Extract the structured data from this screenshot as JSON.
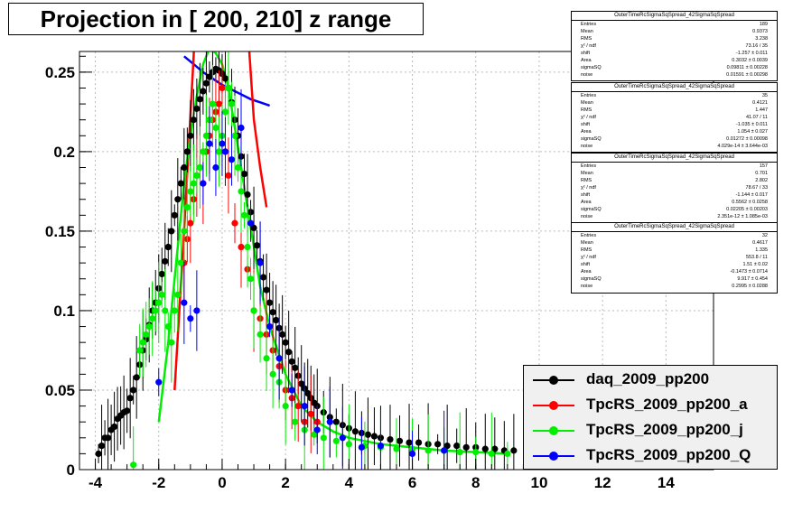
{
  "title": "Projection in [ 200, 210] z range",
  "chart_data": {
    "type": "scatter",
    "xlim": [
      -4.5,
      15.5
    ],
    "ylim": [
      0,
      0.263
    ],
    "xticks": [
      -4,
      -2,
      0,
      2,
      4,
      6,
      8,
      10,
      12,
      14
    ],
    "xtick_labels": [
      "-4",
      "-2",
      "0",
      "2",
      "4",
      "6",
      "8",
      "10",
      "12",
      "14"
    ],
    "yticks": [
      0,
      0.05,
      0.1,
      0.15,
      0.2,
      0.25
    ],
    "ytick_labels": [
      "0",
      "0.05",
      "0.1",
      "0.15",
      "0.2",
      "0.25"
    ],
    "grid": true,
    "legend_position": "bottom-right",
    "series": [
      {
        "name": "daq_2009_pp200",
        "color": "#000000",
        "x": [
          -3.9,
          -3.8,
          -3.7,
          -3.6,
          -3.5,
          -3.4,
          -3.3,
          -3.2,
          -3.1,
          -3.0,
          -2.9,
          -2.8,
          -2.7,
          -2.6,
          -2.5,
          -2.4,
          -2.3,
          -2.2,
          -2.1,
          -2.0,
          -1.9,
          -1.8,
          -1.7,
          -1.6,
          -1.5,
          -1.4,
          -1.3,
          -1.2,
          -1.1,
          -1.0,
          -0.9,
          -0.8,
          -0.7,
          -0.6,
          -0.5,
          -0.4,
          -0.3,
          -0.2,
          -0.1,
          0.0,
          0.1,
          0.2,
          0.3,
          0.4,
          0.5,
          0.6,
          0.7,
          0.8,
          0.9,
          1.0,
          1.1,
          1.2,
          1.3,
          1.4,
          1.5,
          1.6,
          1.7,
          1.8,
          1.9,
          2.0,
          2.1,
          2.2,
          2.3,
          2.4,
          2.5,
          2.6,
          2.7,
          2.8,
          2.9,
          3.0,
          3.2,
          3.4,
          3.6,
          3.8,
          4.0,
          4.2,
          4.4,
          4.6,
          4.8,
          5.0,
          5.3,
          5.6,
          5.9,
          6.2,
          6.5,
          6.8,
          7.1,
          7.4,
          7.7,
          8.0,
          8.3,
          8.6,
          8.9,
          9.2
        ],
        "y": [
          0.01,
          0.015,
          0.02,
          0.02,
          0.025,
          0.027,
          0.032,
          0.034,
          0.036,
          0.037,
          0.045,
          0.05,
          0.058,
          0.066,
          0.075,
          0.082,
          0.091,
          0.1,
          0.105,
          0.114,
          0.123,
          0.131,
          0.14,
          0.15,
          0.16,
          0.17,
          0.18,
          0.19,
          0.2,
          0.21,
          0.22,
          0.227,
          0.233,
          0.238,
          0.243,
          0.247,
          0.25,
          0.252,
          0.251,
          0.249,
          0.246,
          0.24,
          0.231,
          0.22,
          0.21,
          0.197,
          0.186,
          0.173,
          0.162,
          0.152,
          0.141,
          0.131,
          0.121,
          0.113,
          0.105,
          0.099,
          0.094,
          0.089,
          0.085,
          0.08,
          0.074,
          0.068,
          0.064,
          0.059,
          0.054,
          0.051,
          0.048,
          0.045,
          0.042,
          0.04,
          0.036,
          0.033,
          0.03,
          0.028,
          0.026,
          0.024,
          0.023,
          0.022,
          0.021,
          0.02,
          0.019,
          0.018,
          0.017,
          0.017,
          0.016,
          0.016,
          0.015,
          0.015,
          0.014,
          0.014,
          0.013,
          0.013,
          0.012,
          0.012
        ],
        "fit_x": [
          -1.2,
          -0.9,
          -0.6,
          -0.3,
          0.0,
          0.3,
          0.6,
          0.9,
          1.2,
          1.5
        ],
        "fit_y": [
          0.26,
          0.255,
          0.25,
          0.246,
          0.242,
          0.239,
          0.236,
          0.233,
          0.231,
          0.229
        ],
        "fit_color": "#0000ff"
      },
      {
        "name": "TpcRS_2009_pp200_a",
        "color": "#ff0000",
        "x": [
          -1.2,
          -1.1,
          -1.0,
          -0.9,
          -0.8,
          -0.7,
          -0.6,
          -0.5,
          -0.4,
          -0.3,
          -0.2,
          -0.1,
          0.0,
          0.2,
          0.4,
          0.6,
          0.8,
          1.0,
          1.2,
          1.4,
          1.6,
          1.8,
          2.0,
          2.2,
          2.4,
          2.6,
          2.8,
          3.0
        ],
        "y": [
          0.13,
          0.145,
          0.155,
          0.17,
          0.185,
          0.19,
          0.18,
          0.2,
          0.21,
          0.22,
          0.225,
          0.23,
          0.24,
          0.185,
          0.155,
          0.14,
          0.126,
          0.1,
          0.095,
          0.085,
          0.075,
          0.065,
          0.05,
          0.045,
          0.04,
          0.03,
          0.035,
          0.03
        ],
        "fit_x": [
          -1.5,
          -1.2,
          -0.9,
          -0.6,
          -0.4,
          -0.2,
          0.0,
          0.2,
          0.4,
          0.6,
          0.8,
          1.0,
          1.2,
          1.4
        ],
        "fit_y": [
          0.05,
          0.15,
          0.26,
          0.4,
          0.5,
          0.6,
          0.65,
          0.6,
          0.45,
          0.35,
          0.28,
          0.22,
          0.19,
          0.165
        ]
      },
      {
        "name": "TpcRS_2009_pp200_j",
        "color": "#00ee00",
        "x": [
          -2.8,
          -2.6,
          -2.5,
          -2.4,
          -2.3,
          -2.2,
          -2.1,
          -2.0,
          -1.9,
          -1.8,
          -1.7,
          -1.6,
          -1.5,
          -1.4,
          -1.3,
          -1.2,
          -1.1,
          -1.0,
          -0.9,
          -0.8,
          -0.7,
          -0.6,
          -0.5,
          -0.4,
          -0.3,
          -0.2,
          -0.1,
          0.0,
          0.1,
          0.2,
          0.3,
          0.4,
          0.5,
          0.6,
          0.7,
          0.8,
          0.9,
          1.0,
          1.2,
          1.4,
          1.6,
          1.8,
          2.0,
          2.3,
          2.6,
          2.9,
          3.2,
          3.6,
          4.0,
          4.5,
          5.0,
          5.5,
          6.0,
          6.5,
          7.0,
          7.5,
          8.0,
          8.5,
          9.0
        ],
        "y": [
          0.003,
          0.075,
          0.08,
          0.085,
          0.09,
          0.095,
          0.1,
          0.105,
          0.11,
          0.1,
          0.09,
          0.08,
          0.1,
          0.11,
          0.13,
          0.15,
          0.165,
          0.175,
          0.18,
          0.185,
          0.19,
          0.2,
          0.21,
          0.22,
          0.23,
          0.215,
          0.2,
          0.21,
          0.225,
          0.24,
          0.23,
          0.21,
          0.19,
          0.175,
          0.16,
          0.14,
          0.12,
          0.1,
          0.085,
          0.07,
          0.06,
          0.055,
          0.04,
          0.03,
          0.025,
          0.022,
          0.02,
          0.018,
          0.016,
          0.015,
          0.014,
          0.013,
          0.013,
          0.012,
          0.012,
          0.011,
          0.011,
          0.01,
          0.01
        ],
        "fit_x": [
          -2.0,
          -1.7,
          -1.4,
          -1.2,
          -1.0,
          -0.8,
          -0.6,
          -0.4,
          -0.2,
          0.0,
          0.2,
          0.4,
          0.6,
          0.8,
          1.0,
          1.2,
          1.5,
          2.0,
          2.5,
          3.0,
          3.5,
          4.0,
          5.0,
          6.0,
          7.0,
          8.0,
          9.0
        ],
        "fit_y": [
          0.03,
          0.08,
          0.14,
          0.18,
          0.21,
          0.235,
          0.255,
          0.265,
          0.262,
          0.255,
          0.24,
          0.215,
          0.19,
          0.165,
          0.14,
          0.115,
          0.09,
          0.06,
          0.04,
          0.03,
          0.024,
          0.02,
          0.016,
          0.014,
          0.012,
          0.011,
          0.01
        ]
      },
      {
        "name": "TpcRS_2009_pp200_Q",
        "color": "#0000ff",
        "x": [
          -2.0,
          -1.2,
          -1.0,
          -0.8,
          -0.6,
          -0.4,
          -0.2,
          0.0,
          0.1,
          0.3,
          0.6,
          0.9,
          1.2,
          1.5,
          1.8,
          2.2,
          2.6,
          3.0,
          3.4,
          3.8,
          4.4,
          5.0,
          6.0,
          7.0
        ],
        "y": [
          0.055,
          0.105,
          0.095,
          0.1,
          0.18,
          0.205,
          0.19,
          0.205,
          0.2,
          0.195,
          0.215,
          0.155,
          0.13,
          0.09,
          0.07,
          0.05,
          0.04,
          0.025,
          0.03,
          0.02,
          0.014,
          0.015,
          0.01,
          0.012
        ]
      }
    ],
    "stats_boxes": [
      {
        "title": "OuterTimeRcSigmaSqSpread_42SigmaSqSpread",
        "rows": [
          [
            "Entries",
            "189"
          ],
          [
            "Mean",
            "0.9373"
          ],
          [
            "RMS",
            "3.238"
          ],
          [
            "χ² / ndf",
            "73.16 / 35"
          ],
          [
            "shift",
            "-1.257 ± 0.011"
          ],
          [
            "Area",
            "0.3032 ± 0.0039"
          ],
          [
            "sigmaSQ",
            "0.09811 ± 0.00228"
          ],
          [
            "noise",
            "0.01591 ± 0.00298"
          ]
        ]
      },
      {
        "title": "OuterTimeRcSigmaSqSpread_42SigmaSqSpread",
        "rows": [
          [
            "Entries",
            "35"
          ],
          [
            "Mean",
            "0.4121"
          ],
          [
            "RMS",
            "1.447"
          ],
          [
            "χ² / ndf",
            "41.07 / 11"
          ],
          [
            "shift",
            "-1.035 ± 0.011"
          ],
          [
            "Area",
            "1.054 ± 0.027"
          ],
          [
            "sigmaSQ",
            "0.01272 ± 0.00098"
          ],
          [
            "noise",
            "4.029e-14 ± 3.644e-03"
          ]
        ]
      },
      {
        "title": "OuterTimeRcSigmaSqSpread_42SigmaSqSpread",
        "rows": [
          [
            "Entries",
            "157"
          ],
          [
            "Mean",
            "0.701"
          ],
          [
            "RMS",
            "2.802"
          ],
          [
            "χ² / ndf",
            "78.67 / 33"
          ],
          [
            "shift",
            "-1.144 ± 0.017"
          ],
          [
            "Area",
            "0.5562 ± 0.0258"
          ],
          [
            "sigmaSQ",
            "0.02205 ± 0.00203"
          ],
          [
            "noise",
            "2.351e-12 ± 1.085e-03"
          ]
        ]
      },
      {
        "title": "OuterTimeRcSigmaSqSpread_42SigmaSqSpread",
        "rows": [
          [
            "Entries",
            "32"
          ],
          [
            "Mean",
            "0.4617"
          ],
          [
            "RMS",
            "1.335"
          ],
          [
            "χ² / ndf",
            "553.8 / 11"
          ],
          [
            "shift",
            "1.51 ± 0.02"
          ],
          [
            "Area",
            "-0.1473 ± 0.0714"
          ],
          [
            "sigmaSQ",
            "9.917 ± 0.454"
          ],
          [
            "noise",
            "0.2995 ± 0.0288"
          ]
        ]
      }
    ]
  }
}
